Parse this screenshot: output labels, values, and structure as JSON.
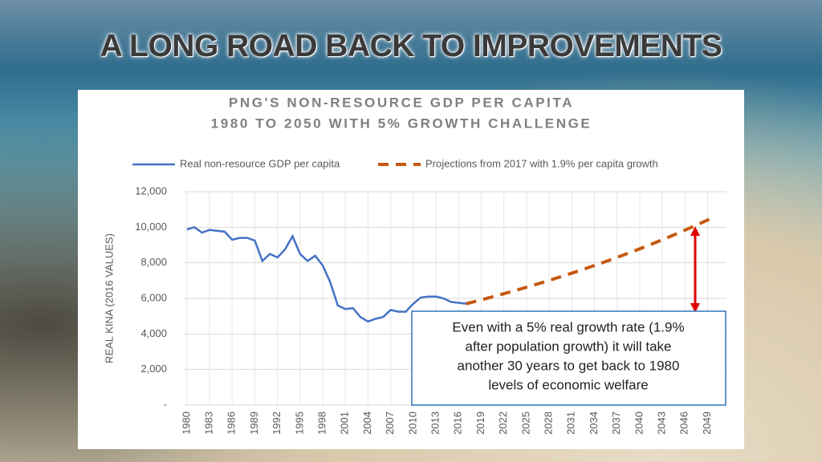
{
  "slide_title": "A LONG ROAD BACK TO IMPROVEMENTS",
  "chart_data": {
    "type": "line",
    "title": "PNG'S NON-RESOURCE GDP PER CAPITA",
    "subtitle": "1980 TO 2050 WITH 5% GROWTH CHALLENGE",
    "ylabel": "REAL KINA (2016 VALUES)",
    "xlim": [
      1979.7,
      2051.5
    ],
    "xticks": [
      1980,
      1983,
      1986,
      1989,
      1992,
      1995,
      1998,
      2001,
      2004,
      2007,
      2010,
      2013,
      2016,
      2019,
      2022,
      2025,
      2028,
      2031,
      2034,
      2037,
      2040,
      2043,
      2046,
      2049
    ],
    "ylim": [
      0,
      12000
    ],
    "yticks": [
      {
        "value": 0,
        "label": "-"
      },
      {
        "value": 2000,
        "label": "2,000"
      },
      {
        "value": 4000,
        "label": "4,000"
      },
      {
        "value": 6000,
        "label": "6,000"
      },
      {
        "value": 8000,
        "label": "8,000"
      },
      {
        "value": 10000,
        "label": "10,000"
      },
      {
        "value": 12000,
        "label": "12,000"
      }
    ],
    "grid": true,
    "series": [
      {
        "name": "Real non-resource GDP per capita",
        "color": "#4472c4",
        "dashed": false,
        "x": [
          1980,
          1981,
          1982,
          1983,
          1984,
          1985,
          1986,
          1987,
          1988,
          1989,
          1990,
          1991,
          1992,
          1993,
          1994,
          1995,
          1996,
          1997,
          1998,
          1999,
          2000,
          2001,
          2002,
          2003,
          2004,
          2005,
          2006,
          2007,
          2008,
          2009,
          2010,
          2011,
          2012,
          2013,
          2014,
          2015,
          2016,
          2017
        ],
        "values": [
          9880,
          10000,
          9700,
          9850,
          9800,
          9750,
          9300,
          9400,
          9400,
          9250,
          8100,
          8500,
          8300,
          8750,
          9500,
          8500,
          8100,
          8400,
          7850,
          6900,
          5600,
          5400,
          5450,
          4950,
          4700,
          4850,
          4950,
          5350,
          5250,
          5250,
          5700,
          6050,
          6100,
          6100,
          6000,
          5800,
          5750,
          5700
        ]
      },
      {
        "name": "Projections from 2017 with 1.9% per capita growth",
        "color": "#c55a11",
        "dashed": true,
        "x": [
          2017,
          2018,
          2019,
          2020,
          2021,
          2022,
          2023,
          2024,
          2025,
          2026,
          2027,
          2028,
          2029,
          2030,
          2031,
          2032,
          2033,
          2034,
          2035,
          2036,
          2037,
          2038,
          2039,
          2040,
          2041,
          2042,
          2043,
          2044,
          2045,
          2046,
          2047,
          2048,
          2049,
          2050
        ],
        "values": [
          5700,
          5808,
          5918,
          6031,
          6145,
          6262,
          6381,
          6502,
          6626,
          6752,
          6880,
          7010,
          7144,
          7279,
          7418,
          7559,
          7702,
          7848,
          7998,
          8150,
          8304,
          8462,
          8623,
          8787,
          8954,
          9124,
          9297,
          9474,
          9654,
          9837,
          10024,
          10214,
          10409,
          10606
        ]
      }
    ],
    "annotation": [
      "Even with a 5% real growth rate (1.9%",
      "after population growth) it will take",
      "another 30 years to get back to 1980",
      "levels of economic welfare"
    ]
  }
}
